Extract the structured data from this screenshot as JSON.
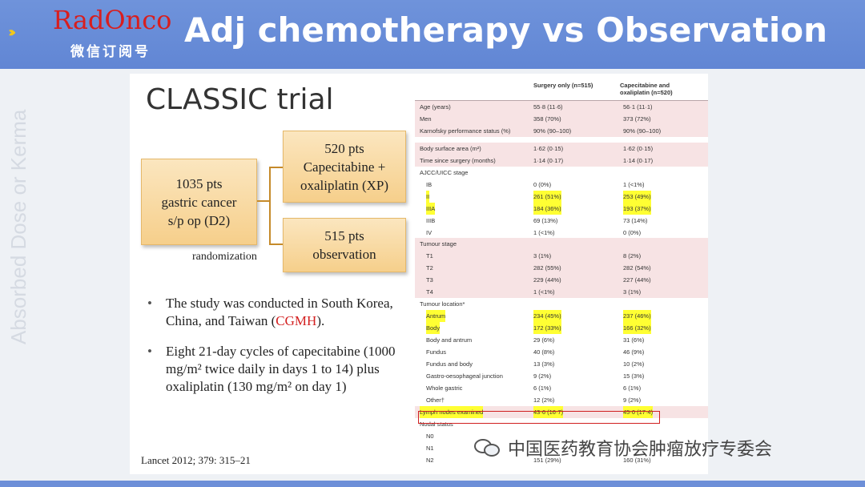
{
  "header": {
    "logo": "RadOnco",
    "logo_sub": "微信订阅号",
    "title": "Adj chemotherapy vs Observation"
  },
  "background": {
    "vertical_text": "Absorbed Dose or Kerma"
  },
  "slide": {
    "title": "CLASSIC trial",
    "box_main": [
      "1035 pts",
      "gastric cancer",
      "s/p op (D2)"
    ],
    "box_xp": [
      "520 pts",
      "Capecitabine +",
      "oxaliplatin (XP)"
    ],
    "box_obs": [
      "515 pts",
      "observation"
    ],
    "randomization": "randomization",
    "bullet1_pre": "The study was conducted in South Korea, China, and Taiwan (",
    "bullet1_red": "CGMH",
    "bullet1_post": ").",
    "bullet2": "Eight 21-day cycles of capecitabine (1000 mg/m² twice daily in days 1 to 14) plus oxaliplatin (130 mg/m² on day 1)",
    "citation": "Lancet 2012; 379: 315–21"
  },
  "table": {
    "col1": "Surgery only (n=515)",
    "col2": "Capecitabine and oxaliplatin (n=520)",
    "rows": [
      {
        "label": "Age (years)",
        "v1": "55·8 (11·6)",
        "v2": "56·1 (11·1)"
      },
      {
        "label": "Men",
        "v1": "358 (70%)",
        "v2": "373 (72%)"
      },
      {
        "label": "Karnofsky performance status (%)",
        "v1": "90% (90–100)",
        "v2": "90% (90–100)"
      },
      {
        "label": "Body surface area (m²)",
        "v1": "1·62 (0·15)",
        "v2": "1·62 (0·15)"
      },
      {
        "label": "Time since surgery (months)",
        "v1": "1·14 (0·17)",
        "v2": "1·14 (0·17)"
      },
      {
        "label": "AJCC/UICC stage",
        "v1": "",
        "v2": ""
      },
      {
        "label": "IB",
        "v1": "0 (0%)",
        "v2": "1 (<1%)"
      },
      {
        "label": "II",
        "v1": "261 (51%)",
        "v2": "253 (49%)"
      },
      {
        "label": "IIIA",
        "v1": "184 (36%)",
        "v2": "193 (37%)"
      },
      {
        "label": "IIIB",
        "v1": "69 (13%)",
        "v2": "73 (14%)"
      },
      {
        "label": "IV",
        "v1": "1 (<1%)",
        "v2": "0 (0%)"
      },
      {
        "label": "Tumour stage",
        "v1": "",
        "v2": ""
      },
      {
        "label": "T1",
        "v1": "3 (1%)",
        "v2": "8 (2%)"
      },
      {
        "label": "T2",
        "v1": "282 (55%)",
        "v2": "282 (54%)"
      },
      {
        "label": "T3",
        "v1": "229 (44%)",
        "v2": "227 (44%)"
      },
      {
        "label": "T4",
        "v1": "1 (<1%)",
        "v2": "3 (1%)"
      },
      {
        "label": "Tumour location*",
        "v1": "",
        "v2": ""
      },
      {
        "label": "Antrum",
        "v1": "234 (45%)",
        "v2": "237 (46%)"
      },
      {
        "label": "Body",
        "v1": "172 (33%)",
        "v2": "166 (32%)"
      },
      {
        "label": "Body and antrum",
        "v1": "29 (6%)",
        "v2": "31 (6%)"
      },
      {
        "label": "Fundus",
        "v1": "40 (8%)",
        "v2": "46 (9%)"
      },
      {
        "label": "Fundus and body",
        "v1": "13 (3%)",
        "v2": "10 (2%)"
      },
      {
        "label": "Gastro-oesophageal junction",
        "v1": "9 (2%)",
        "v2": "15 (3%)"
      },
      {
        "label": "Whole gastric",
        "v1": "6 (1%)",
        "v2": "6 (1%)"
      },
      {
        "label": "Other†",
        "v1": "12 (2%)",
        "v2": "9 (2%)"
      },
      {
        "label": "Lymph nodes examined",
        "v1": "43·6 (16·7)",
        "v2": "45·0 (17·4)"
      },
      {
        "label": "Nodal status",
        "v1": "",
        "v2": ""
      },
      {
        "label": "N0",
        "v1": "",
        "v2": ""
      },
      {
        "label": "N1",
        "v1": "",
        "v2": ""
      },
      {
        "label": "N2",
        "v1": "151 (29%)",
        "v2": "160 (31%)"
      }
    ]
  },
  "watermark": "中国医药教育协会肿瘤放疗专委会",
  "colors": {
    "header": "#6f93db",
    "box": "#f6cf8b",
    "highlight": "#ffff33",
    "accent_red": "#d32020"
  }
}
